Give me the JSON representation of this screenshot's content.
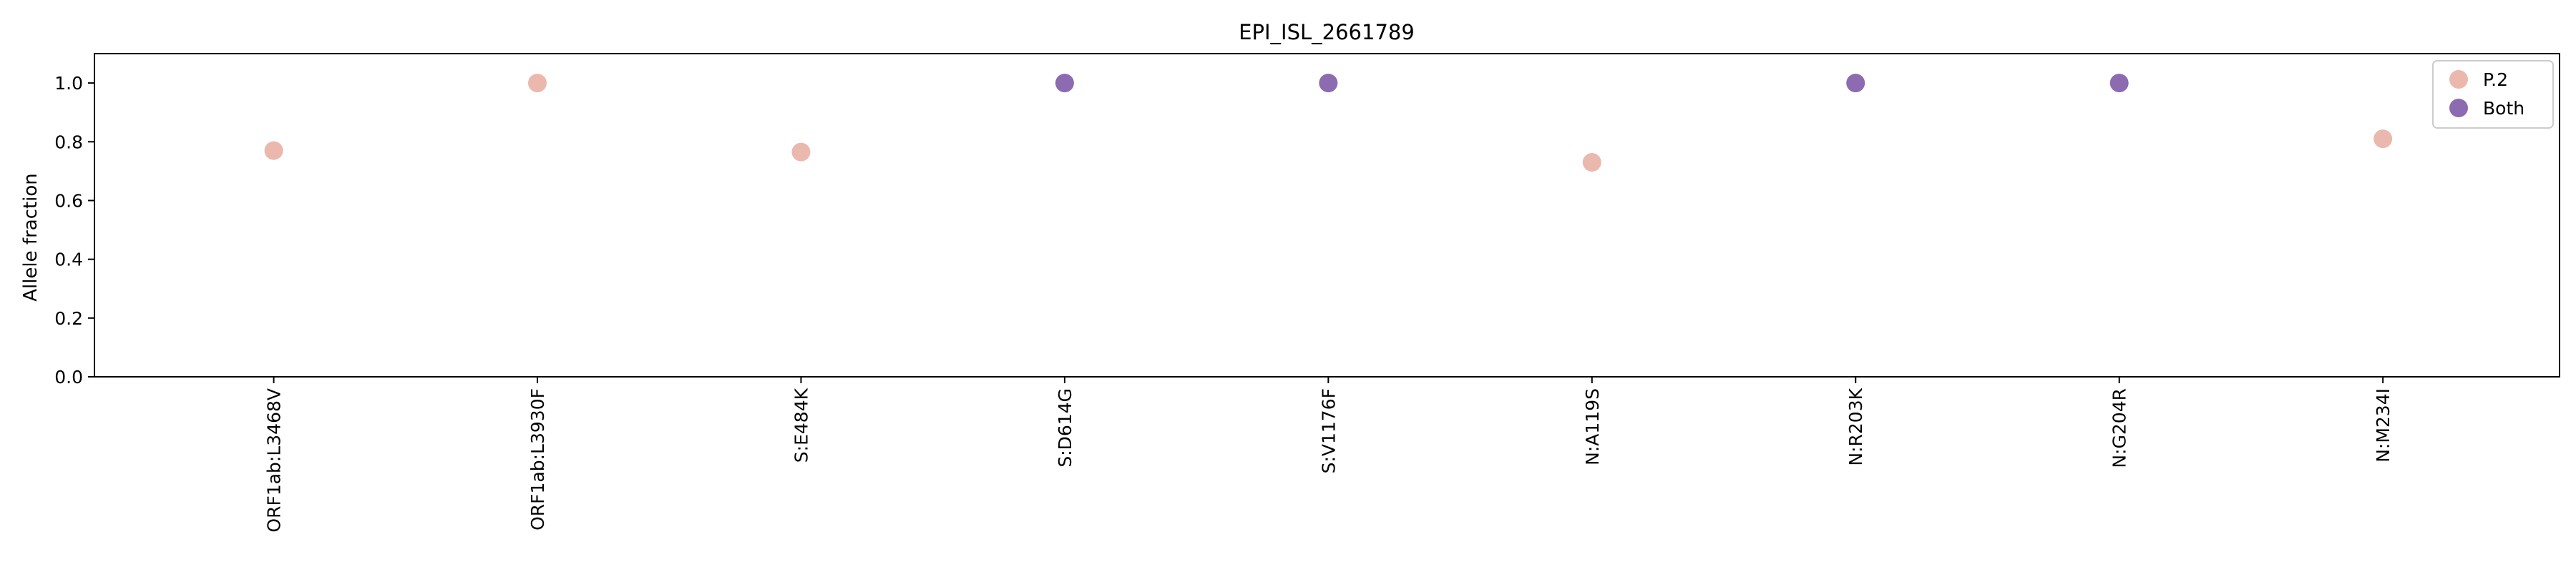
{
  "chart_data": {
    "type": "scatter",
    "title": "EPI_ISL_2661789",
    "xlabel": "",
    "ylabel": "Allele fraction",
    "ylim": [
      0.0,
      1.1
    ],
    "yticks": [
      "0.0",
      "0.2",
      "0.4",
      "0.6",
      "0.8",
      "1.0"
    ],
    "categories": [
      "ORF1ab:L3468V",
      "ORF1ab:L3930F",
      "S:E484K",
      "S:D614G",
      "S:V1176F",
      "N:A119S",
      "N:R203K",
      "N:G204R",
      "N:M234I"
    ],
    "grid": false,
    "legend_position": "top-right",
    "series": [
      {
        "name": "P.2",
        "color": "#ebb8ae",
        "points": [
          {
            "x": "ORF1ab:L3468V",
            "y": 0.77
          },
          {
            "x": "ORF1ab:L3930F",
            "y": 1.0
          },
          {
            "x": "S:E484K",
            "y": 0.765
          },
          {
            "x": "N:A119S",
            "y": 0.73
          },
          {
            "x": "N:M234I",
            "y": 0.81
          }
        ]
      },
      {
        "name": "Both",
        "color": "#8c6bb1",
        "points": [
          {
            "x": "S:D614G",
            "y": 1.0
          },
          {
            "x": "S:V1176F",
            "y": 1.0
          },
          {
            "x": "N:R203K",
            "y": 1.0
          },
          {
            "x": "N:G204R",
            "y": 1.0
          }
        ]
      }
    ]
  }
}
